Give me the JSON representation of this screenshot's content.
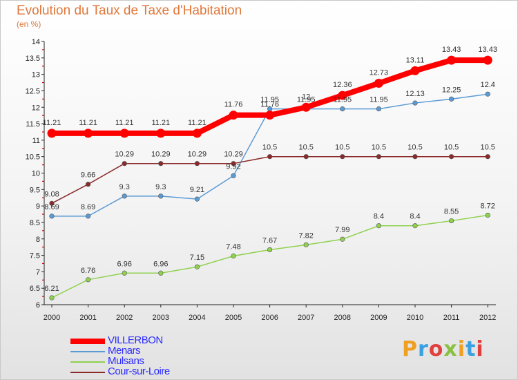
{
  "title": "Evolution du Taux de Taxe d'Habitation",
  "unit": "(en %)",
  "logo": {
    "text": "Proxiti",
    "colors": [
      "#f0a020",
      "#3aa0e0",
      "#e04040",
      "#8ac040",
      "#f0a020",
      "#3aa0e0",
      "#e04040"
    ]
  },
  "chart_data": {
    "type": "line",
    "categories": [
      "2000",
      "2001",
      "2002",
      "2003",
      "2004",
      "2005",
      "2006",
      "2007",
      "2008",
      "2009",
      "2010",
      "2011",
      "2012"
    ],
    "ylim": [
      6,
      14
    ],
    "yticks": [
      "6",
      "6.5",
      "7",
      "7.5",
      "8",
      "8.5",
      "9",
      "9.5",
      "10",
      "10.5",
      "11",
      "11.5",
      "12",
      "12.5",
      "13",
      "13.5",
      "14"
    ],
    "grid": false,
    "legend_position": "bottom-left",
    "series": [
      {
        "name": "VILLERBON",
        "color": "#ff0000",
        "values": [
          11.21,
          11.21,
          11.21,
          11.21,
          11.21,
          11.76,
          11.76,
          12,
          12.36,
          12.73,
          13.11,
          13.43,
          13.43
        ],
        "labels": [
          "11.21",
          "11.21",
          "11.21",
          "11.21",
          "11.21",
          "11.76",
          "11.76",
          "12",
          "12.36",
          "12.73",
          "13.11",
          "13.43",
          "13.43"
        ]
      },
      {
        "name": "Menars",
        "color": "#5b9bd5",
        "values": [
          8.69,
          8.69,
          9.3,
          9.3,
          9.21,
          9.92,
          11.95,
          11.95,
          11.95,
          11.95,
          12.13,
          12.25,
          12.4
        ],
        "labels": [
          "8.69",
          "8.69",
          "9.3",
          "9.3",
          "9.21",
          "9.92",
          "11.95",
          "11.95",
          "11.95",
          "11.95",
          "12.13",
          "12.25",
          "12.4"
        ]
      },
      {
        "name": "Mulsans",
        "color": "#8fd14f",
        "values": [
          6.21,
          6.76,
          6.96,
          6.96,
          7.15,
          7.48,
          7.67,
          7.82,
          7.99,
          8.4,
          8.4,
          8.55,
          8.72
        ],
        "labels": [
          "6.21",
          "6.76",
          "6.96",
          "6.96",
          "7.15",
          "7.48",
          "7.67",
          "7.82",
          "7.99",
          "8.4",
          "8.4",
          "8.55",
          "8.72"
        ]
      },
      {
        "name": "Cour-sur-Loire",
        "color": "#8b2a2a",
        "values": [
          9.08,
          9.66,
          10.29,
          10.29,
          10.29,
          10.29,
          10.5,
          10.5,
          10.5,
          10.5,
          10.5,
          10.5,
          10.5
        ],
        "labels": [
          "9.08",
          "9.66",
          "10.29",
          "10.29",
          "10.29",
          "10.29",
          "10.5",
          "10.5",
          "10.5",
          "10.5",
          "10.5",
          "10.5",
          "10.5"
        ]
      }
    ]
  }
}
